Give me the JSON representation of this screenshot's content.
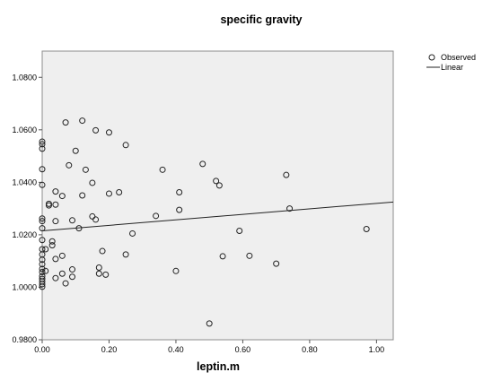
{
  "chart_data": {
    "type": "scatter",
    "title": "specific gravity",
    "xlabel": "leptin.m",
    "ylabel": "",
    "xlim": [
      0,
      1.05
    ],
    "ylim": [
      0.98,
      1.09
    ],
    "x_ticks": [
      0,
      0.2,
      0.4,
      0.6,
      0.8,
      1.0
    ],
    "x_tick_labels": [
      "0.00",
      "0.20",
      "0.40",
      "0.60",
      "0.80",
      "1.00"
    ],
    "y_ticks": [
      0.98,
      1.0,
      1.02,
      1.04,
      1.06,
      1.08
    ],
    "y_tick_labels": [
      "0.9800",
      "1.0000",
      "1.0200",
      "1.0400",
      "1.0600",
      "1.0800"
    ],
    "grid": false,
    "legend": {
      "position": "top-right",
      "entries": [
        {
          "label": "Observed",
          "marker": "circle"
        },
        {
          "label": "Linear",
          "marker": "line"
        }
      ]
    },
    "series": [
      {
        "name": "Observed",
        "kind": "scatter",
        "points": [
          [
            0.0,
            1.0555
          ],
          [
            0.0,
            1.0545
          ],
          [
            0.0,
            1.0528
          ],
          [
            0.0,
            1.045
          ],
          [
            0.0,
            1.039
          ],
          [
            0.0,
            1.0262
          ],
          [
            0.0,
            1.0252
          ],
          [
            0.0,
            1.0225
          ],
          [
            0.0,
            1.018
          ],
          [
            0.0,
            1.0145
          ],
          [
            0.0,
            1.0125
          ],
          [
            0.0,
            1.0105
          ],
          [
            0.0,
            1.0088
          ],
          [
            0.0,
            1.007
          ],
          [
            0.0,
            1.0058
          ],
          [
            0.0,
            1.0042
          ],
          [
            0.0,
            1.0032
          ],
          [
            0.0,
            1.0022
          ],
          [
            0.0,
            1.0012
          ],
          [
            0.0,
            1.0002
          ],
          [
            0.01,
            1.0145
          ],
          [
            0.01,
            1.0062
          ],
          [
            0.02,
            1.0312
          ],
          [
            0.02,
            1.0318
          ],
          [
            0.03,
            1.0175
          ],
          [
            0.03,
            1.016
          ],
          [
            0.04,
            1.0365
          ],
          [
            0.04,
            1.0315
          ],
          [
            0.04,
            1.0252
          ],
          [
            0.04,
            1.0108
          ],
          [
            0.04,
            1.0035
          ],
          [
            0.06,
            1.0348
          ],
          [
            0.06,
            1.012
          ],
          [
            0.06,
            1.0052
          ],
          [
            0.07,
            1.0628
          ],
          [
            0.07,
            1.0015
          ],
          [
            0.08,
            1.0465
          ],
          [
            0.09,
            1.0255
          ],
          [
            0.09,
            1.0068
          ],
          [
            0.09,
            1.004
          ],
          [
            0.1,
            1.052
          ],
          [
            0.11,
            1.0225
          ],
          [
            0.12,
            1.0635
          ],
          [
            0.12,
            1.035
          ],
          [
            0.13,
            1.0448
          ],
          [
            0.15,
            1.0398
          ],
          [
            0.15,
            1.027
          ],
          [
            0.16,
            1.0598
          ],
          [
            0.16,
            1.0258
          ],
          [
            0.17,
            1.0075
          ],
          [
            0.17,
            1.0052
          ],
          [
            0.18,
            1.0138
          ],
          [
            0.19,
            1.0048
          ],
          [
            0.2,
            1.059
          ],
          [
            0.2,
            1.0357
          ],
          [
            0.23,
            1.0362
          ],
          [
            0.25,
            1.0542
          ],
          [
            0.25,
            1.0125
          ],
          [
            0.27,
            1.0205
          ],
          [
            0.34,
            1.0272
          ],
          [
            0.36,
            1.0448
          ],
          [
            0.4,
            1.0062
          ],
          [
            0.41,
            1.0362
          ],
          [
            0.41,
            1.0295
          ],
          [
            0.48,
            1.047
          ],
          [
            0.5,
            0.9862
          ],
          [
            0.52,
            1.0405
          ],
          [
            0.53,
            1.0388
          ],
          [
            0.54,
            1.0118
          ],
          [
            0.59,
            1.0215
          ],
          [
            0.62,
            1.012
          ],
          [
            0.7,
            1.009
          ],
          [
            0.73,
            1.0428
          ],
          [
            0.74,
            1.03
          ],
          [
            0.97,
            1.0222
          ]
        ]
      },
      {
        "name": "Linear",
        "kind": "line",
        "points": [
          [
            0.0,
            1.0215
          ],
          [
            1.05,
            1.0325
          ]
        ]
      }
    ]
  }
}
